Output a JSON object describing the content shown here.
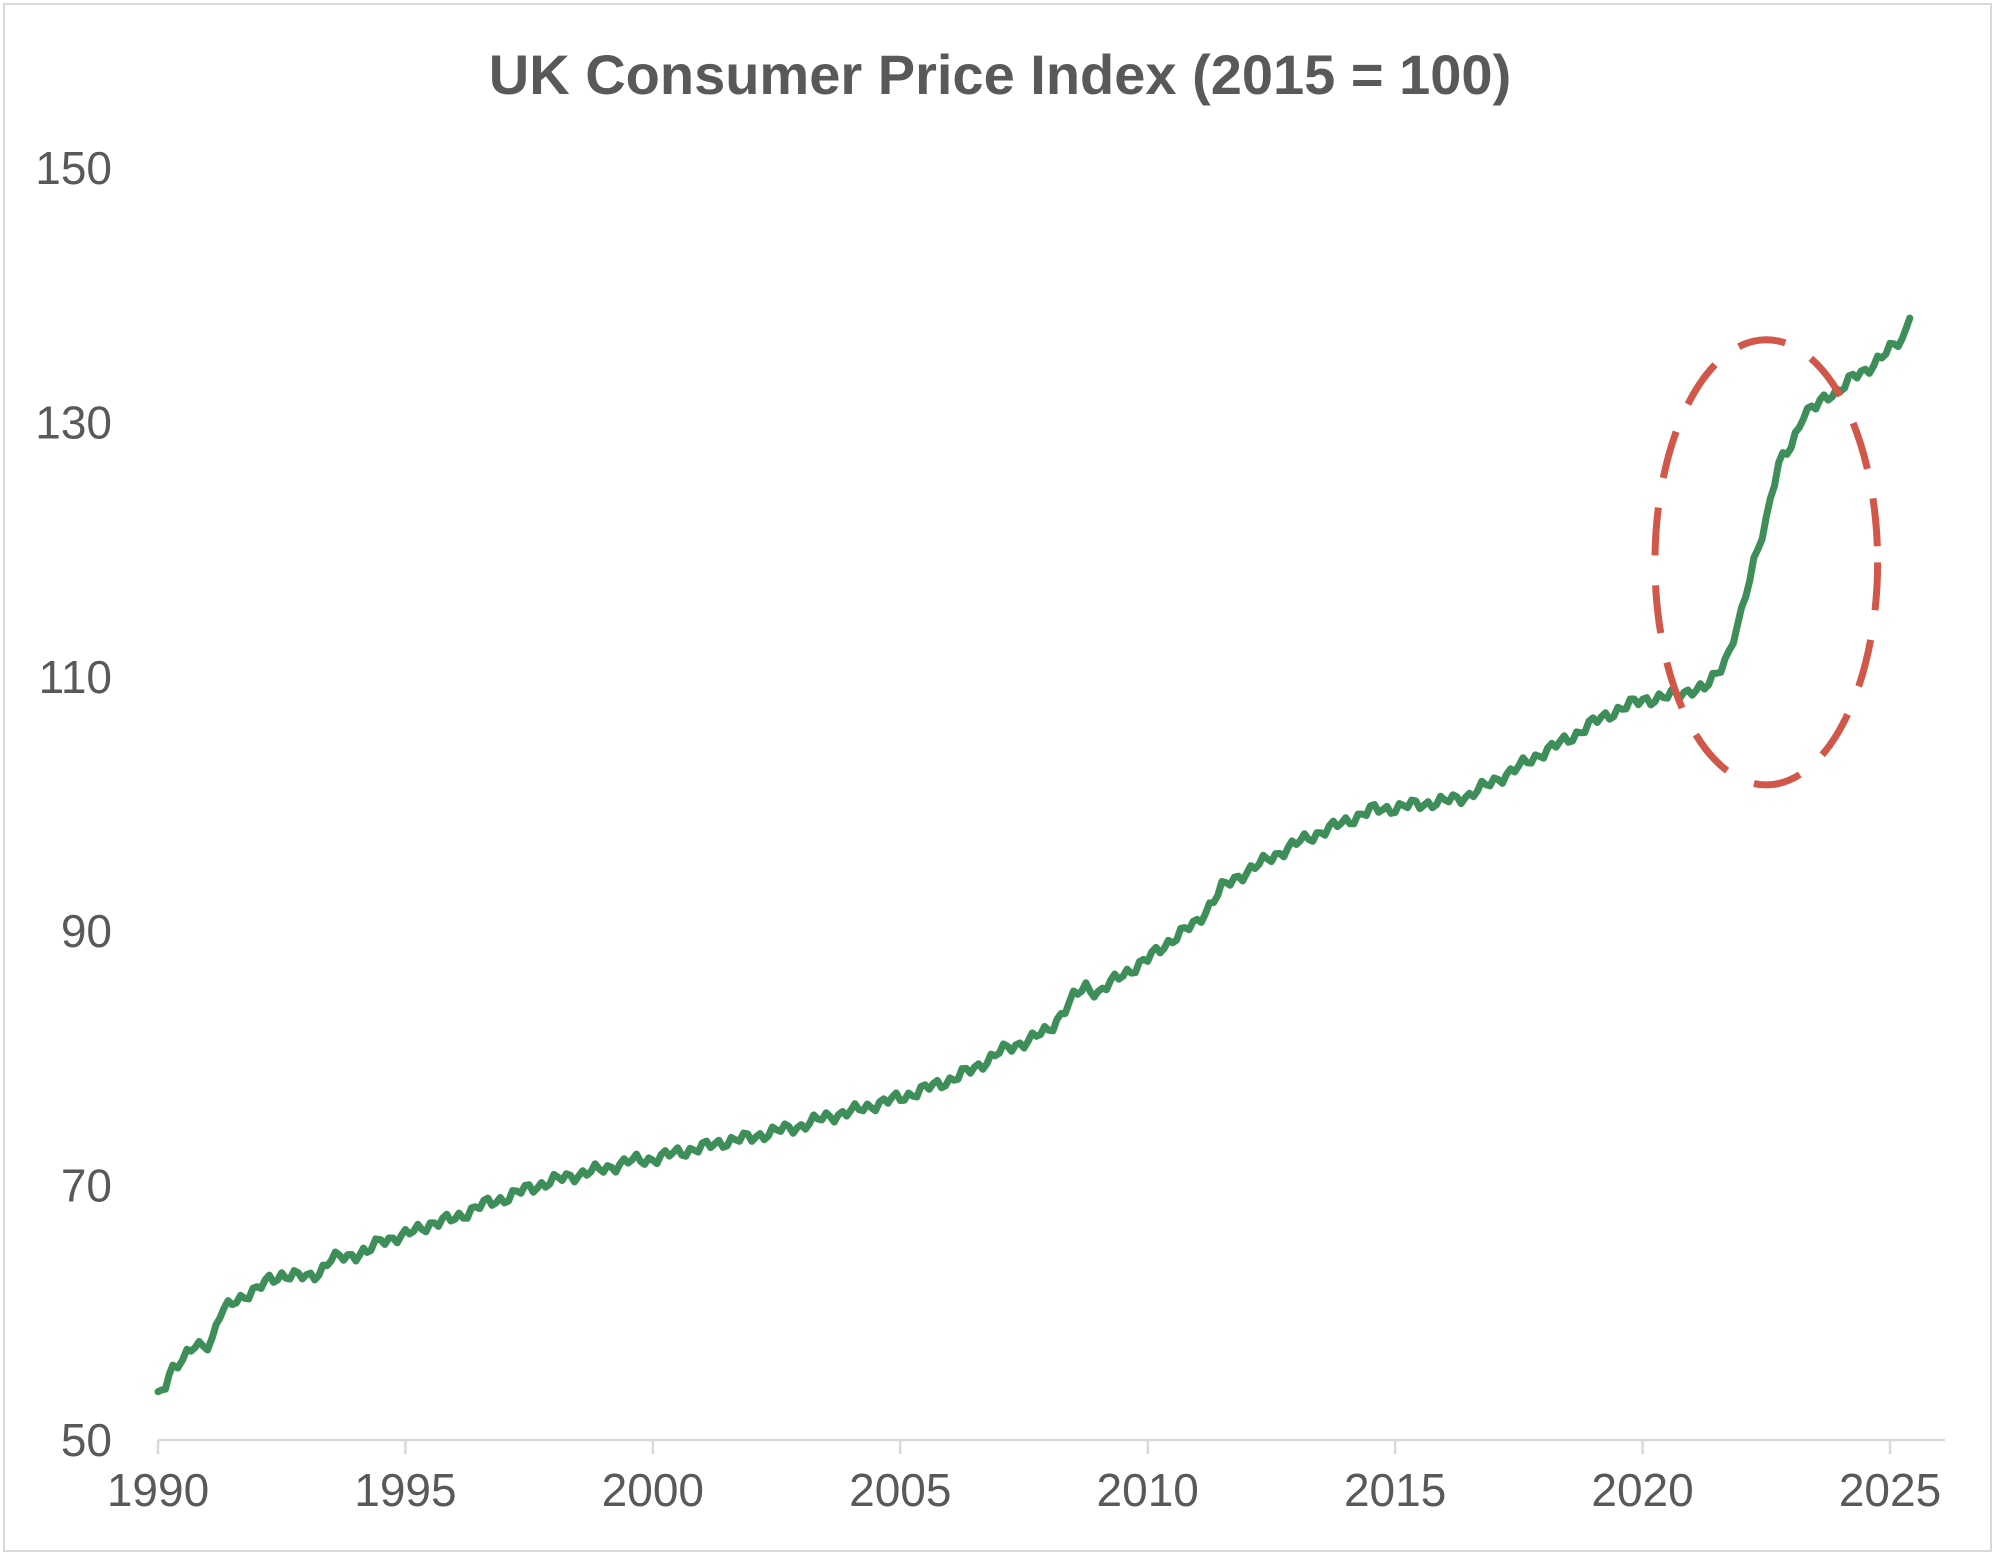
{
  "chart_data": {
    "type": "line",
    "title": "UK Consumer Price Index (2015 = 100)",
    "xlabel": "",
    "ylabel": "",
    "xlim": [
      1990,
      2025.8
    ],
    "ylim": [
      50,
      150
    ],
    "x_ticks": [
      1990,
      1995,
      2000,
      2005,
      2010,
      2015,
      2020,
      2025
    ],
    "x_tick_labels": [
      "1990",
      "1995",
      "2000",
      "2005",
      "2010",
      "2015",
      "2020",
      "2025"
    ],
    "y_ticks": [
      50,
      70,
      90,
      110,
      130,
      150
    ],
    "y_tick_labels": [
      "50",
      "70",
      "90",
      "110",
      "130",
      "150"
    ],
    "grid": false,
    "legend": "none",
    "series": [
      {
        "color": "#3e8e5a",
        "x": [
          1990.0,
          1990.15,
          1990.3,
          1990.5,
          1990.75,
          1991.0,
          1991.1,
          1991.25,
          1991.5,
          1991.75,
          1992.0,
          1992.25,
          1992.5,
          1993.0,
          1993.25,
          1993.5,
          1994.0,
          1994.3,
          1994.5,
          1995.0,
          1995.5,
          1996.0,
          1996.5,
          1997.0,
          1997.5,
          1998.0,
          1998.5,
          1999.0,
          1999.5,
          2000.0,
          2000.5,
          2001.0,
          2001.5,
          2002.0,
          2002.5,
          2003.0,
          2003.5,
          2004.0,
          2004.5,
          2005.0,
          2005.5,
          2006.0,
          2006.5,
          2007.0,
          2007.5,
          2008.0,
          2008.5,
          2008.75,
          2009.0,
          2009.5,
          2010.0,
          2010.5,
          2011.0,
          2011.5,
          2012.0,
          2012.5,
          2013.0,
          2013.5,
          2014.0,
          2014.5,
          2015.0,
          2015.5,
          2016.0,
          2016.5,
          2017.0,
          2017.5,
          2018.0,
          2018.5,
          2019.0,
          2019.5,
          2020.0,
          2020.5,
          2021.0,
          2021.25,
          2021.5,
          2021.75,
          2022.0,
          2022.25,
          2022.5,
          2022.75,
          2023.0,
          2023.25,
          2023.5,
          2023.75,
          2024.0,
          2024.25,
          2024.5,
          2024.75,
          2025.0,
          2025.25,
          2025.4
        ],
        "y": [
          53.4,
          54.5,
          55.8,
          56.2,
          57.4,
          57.6,
          58.0,
          59.8,
          60.8,
          61.4,
          61.8,
          62.6,
          63.0,
          62.8,
          63.2,
          64.2,
          64.6,
          64.9,
          65.7,
          66.1,
          67.0,
          67.4,
          68.4,
          69.0,
          69.8,
          70.4,
          70.9,
          71.3,
          71.9,
          72.1,
          72.6,
          73.0,
          73.5,
          73.8,
          74.3,
          74.7,
          75.4,
          75.8,
          76.4,
          76.9,
          77.6,
          78.3,
          79.2,
          80.5,
          81.3,
          82.2,
          84.8,
          85.6,
          85.2,
          86.6,
          87.8,
          89.4,
          90.7,
          93.4,
          94.7,
          95.8,
          96.9,
          97.8,
          98.6,
          99.5,
          99.7,
          100.0,
          100.2,
          100.7,
          101.8,
          102.9,
          104.1,
          105.1,
          106.4,
          107.4,
          108.2,
          108.4,
          109.0,
          109.0,
          110.3,
          112.0,
          114.9,
          119.1,
          122.5,
          126.6,
          128.2,
          130.7,
          131.2,
          132.1,
          132.7,
          133.5,
          134.0,
          135.0,
          135.7,
          136.5,
          138.2
        ]
      }
    ],
    "annotation": {
      "type": "dashed-ellipse",
      "color": "#d0574a",
      "center_x": 2022.5,
      "center_y": 119,
      "radius_x": 2.25,
      "radius_y": 17.5
    }
  }
}
